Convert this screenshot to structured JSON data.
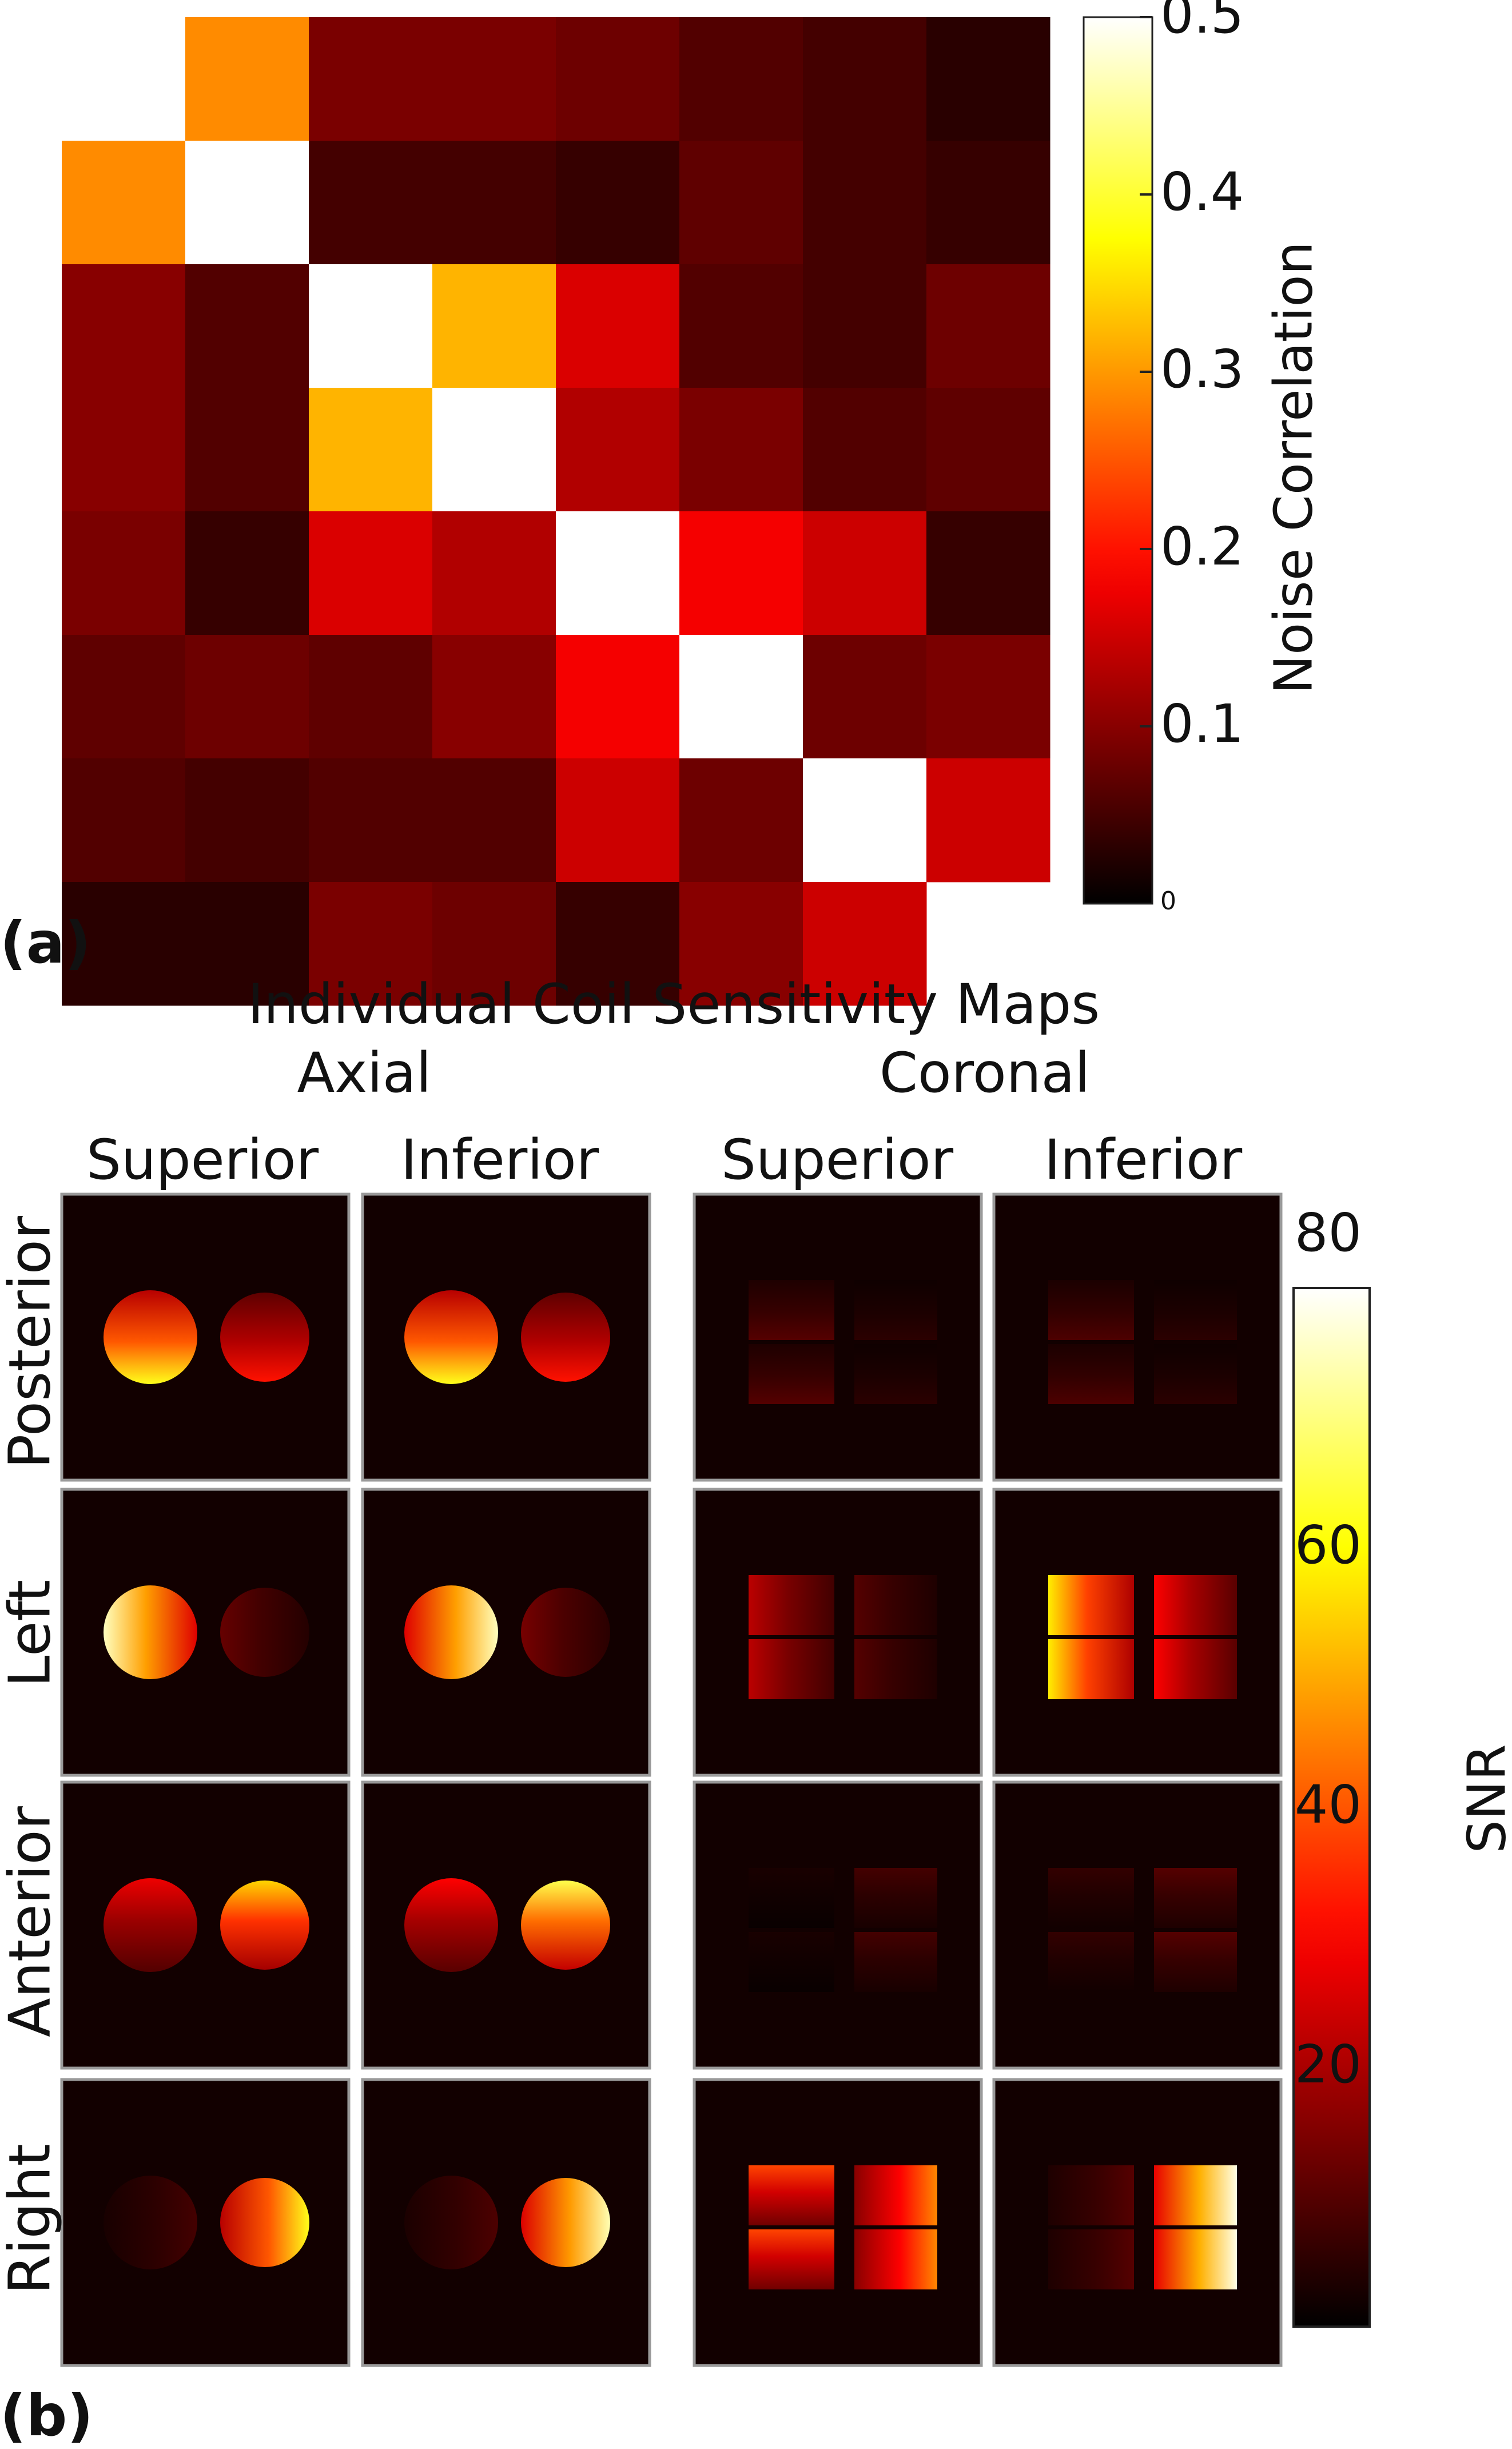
{
  "panel_a_label": "(a)",
  "panel_b_label": "(b)",
  "chart_data": [
    {
      "type": "heatmap",
      "title": "",
      "colorbar_label": "Noise Correlation",
      "colormap": "hot",
      "clim": [
        0,
        0.5
      ],
      "colorbar_ticks": [
        0.5,
        0.4,
        0.3,
        0.2,
        0.1,
        0
      ],
      "colorbar_tick_labels": [
        "0.5",
        "0.4",
        "0.3",
        "0.2",
        "0.1",
        "0"
      ],
      "rows": 8,
      "cols": 8,
      "values": [
        [
          0.5,
          0.29,
          0.09,
          0.09,
          0.08,
          0.06,
          0.05,
          0.03
        ],
        [
          0.29,
          0.5,
          0.05,
          0.05,
          0.04,
          0.07,
          0.05,
          0.04
        ],
        [
          0.1,
          0.06,
          0.5,
          0.32,
          0.16,
          0.06,
          0.05,
          0.08
        ],
        [
          0.1,
          0.06,
          0.32,
          0.5,
          0.13,
          0.09,
          0.06,
          0.07
        ],
        [
          0.09,
          0.04,
          0.16,
          0.13,
          0.5,
          0.18,
          0.15,
          0.04
        ],
        [
          0.07,
          0.08,
          0.07,
          0.1,
          0.18,
          0.5,
          0.08,
          0.09
        ],
        [
          0.06,
          0.05,
          0.06,
          0.06,
          0.15,
          0.08,
          0.5,
          0.15
        ],
        [
          0.03,
          0.03,
          0.09,
          0.08,
          0.04,
          0.1,
          0.15,
          0.5
        ]
      ],
      "upper_left_cell_blank": true,
      "lower_right_cell_blank": true
    },
    {
      "type": "heatmap",
      "title": "Individual Coil Sensitivity Maps",
      "group_labels": [
        "Axial",
        "Coronal"
      ],
      "column_labels": [
        "Superior",
        "Inferior",
        "Superior",
        "Inferior"
      ],
      "row_labels": [
        "Posterior",
        "Left",
        "Anterior",
        "Right"
      ],
      "colorbar_label": "SNR",
      "colormap": "hot",
      "clim": [
        0,
        80
      ],
      "colorbar_ticks": [
        80,
        60,
        40,
        20
      ],
      "colorbar_tick_labels": [
        "80",
        "60",
        "40",
        "20"
      ],
      "tiles": [
        {
          "row": "Posterior",
          "view": "Axial",
          "slice": "Superior",
          "kind": "axial",
          "left_peak": 62,
          "left_gradient": "bottom",
          "right_peak": 32,
          "right_gradient": "bottom"
        },
        {
          "row": "Posterior",
          "view": "Axial",
          "slice": "Inferior",
          "kind": "axial",
          "left_peak": 62,
          "left_gradient": "bottom",
          "right_peak": 32,
          "right_gradient": "bottom"
        },
        {
          "row": "Posterior",
          "view": "Coronal",
          "slice": "Superior",
          "kind": "coronal",
          "left_peak": 10,
          "left_gradient": "bottom",
          "right_peak": 5,
          "right_gradient": "bottom"
        },
        {
          "row": "Posterior",
          "view": "Coronal",
          "slice": "Inferior",
          "kind": "coronal",
          "left_peak": 9,
          "left_gradient": "bottom",
          "right_peak": 5,
          "right_gradient": "bottom"
        },
        {
          "row": "Left",
          "view": "Axial",
          "slice": "Superior",
          "kind": "axial",
          "left_peak": 75,
          "left_gradient": "left",
          "right_peak": 12,
          "right_gradient": "left"
        },
        {
          "row": "Left",
          "view": "Axial",
          "slice": "Inferior",
          "kind": "axial",
          "left_peak": 75,
          "left_gradient": "right",
          "right_peak": 14,
          "right_gradient": "left"
        },
        {
          "row": "Left",
          "view": "Coronal",
          "slice": "Superior",
          "kind": "coronal",
          "left_peak": 22,
          "left_gradient": "left",
          "right_peak": 10,
          "right_gradient": "left"
        },
        {
          "row": "Left",
          "view": "Coronal",
          "slice": "Inferior",
          "kind": "coronal",
          "left_peak": 58,
          "left_gradient": "left",
          "right_peak": 30,
          "right_gradient": "left"
        },
        {
          "row": "Anterior",
          "view": "Axial",
          "slice": "Superior",
          "kind": "axial",
          "left_peak": 28,
          "left_gradient": "top",
          "right_peak": 55,
          "right_gradient": "top"
        },
        {
          "row": "Anterior",
          "view": "Axial",
          "slice": "Inferior",
          "kind": "axial",
          "left_peak": 30,
          "left_gradient": "top",
          "right_peak": 66,
          "right_gradient": "top"
        },
        {
          "row": "Anterior",
          "view": "Coronal",
          "slice": "Superior",
          "kind": "coronal",
          "left_peak": 3,
          "left_gradient": "top",
          "right_peak": 8,
          "right_gradient": "top"
        },
        {
          "row": "Anterior",
          "view": "Coronal",
          "slice": "Inferior",
          "kind": "coronal",
          "left_peak": 6,
          "left_gradient": "top",
          "right_peak": 10,
          "right_gradient": "top"
        },
        {
          "row": "Right",
          "view": "Axial",
          "slice": "Superior",
          "kind": "axial",
          "left_peak": 8,
          "left_gradient": "right",
          "right_peak": 62,
          "right_gradient": "right"
        },
        {
          "row": "Right",
          "view": "Axial",
          "slice": "Inferior",
          "kind": "axial",
          "left_peak": 9,
          "left_gradient": "right",
          "right_peak": 74,
          "right_gradient": "right"
        },
        {
          "row": "Right",
          "view": "Coronal",
          "slice": "Superior",
          "kind": "coronal",
          "left_peak": 38,
          "left_gradient": "top",
          "right_peak": 46,
          "right_gradient": "right"
        },
        {
          "row": "Right",
          "view": "Coronal",
          "slice": "Inferior",
          "kind": "coronal",
          "left_peak": 10,
          "left_gradient": "right",
          "right_peak": 78,
          "right_gradient": "right"
        }
      ]
    }
  ]
}
